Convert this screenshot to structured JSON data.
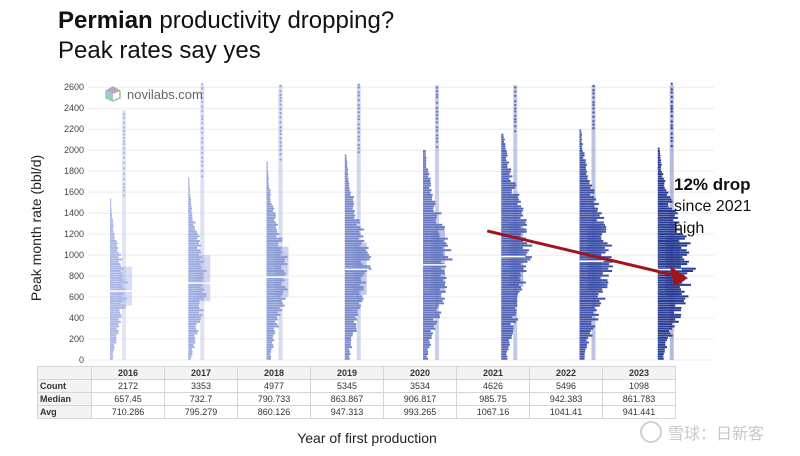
{
  "title": {
    "bold": "Permian",
    "rest": " productivity dropping?",
    "line2": "Peak rates say yes"
  },
  "logo": {
    "text": "novilabs.com"
  },
  "annotation": {
    "line1": "12% drop",
    "line2": "since 2021",
    "line3": "high"
  },
  "watermark": {
    "text": "雪球：日新客"
  },
  "colors": {
    "arrow": "#a0141e",
    "median_line": "#ffffff"
  },
  "chart_data": {
    "type": "violin_box",
    "xlabel": "Year of first production",
    "ylabel": "Peak month rate (bbl/d)",
    "ylim": [
      0,
      2650
    ],
    "yticks": [
      0,
      200,
      400,
      600,
      800,
      1000,
      1200,
      1400,
      1600,
      1800,
      2000,
      2200,
      2400,
      2600
    ],
    "grid": true,
    "categories": [
      "2016",
      "2017",
      "2018",
      "2019",
      "2020",
      "2021",
      "2022",
      "2023"
    ],
    "colors": [
      "#aab6e6",
      "#9eacdf",
      "#8c9cd6",
      "#7a8bcd",
      "#6878c4",
      "#5264b8",
      "#4153aa",
      "#2a3d95"
    ],
    "count": [
      2172,
      3353,
      4977,
      5345,
      3534,
      4626,
      5496,
      1098
    ],
    "median": [
      657.45,
      732.7,
      790.733,
      863.867,
      906.817,
      985.75,
      942.383,
      861.783
    ],
    "avg": [
      710.286,
      795.279,
      860.126,
      947.313,
      993.265,
      1067.16,
      1041.41,
      941.441
    ],
    "q1": [
      520,
      560,
      600,
      620,
      640,
      700,
      660,
      600
    ],
    "q3": [
      890,
      1000,
      1080,
      1120,
      1230,
      1310,
      1290,
      1180
    ],
    "max_histogram": [
      1540,
      1720,
      1880,
      1950,
      2000,
      2150,
      2180,
      2010
    ],
    "table": {
      "row_labels": [
        "Count",
        "Median",
        "Avg"
      ],
      "count": [
        "2172",
        "3353",
        "4977",
        "5345",
        "3534",
        "4626",
        "5496",
        "1098"
      ],
      "median": [
        "657.45",
        "732.7",
        "790.733",
        "863.867",
        "906.817",
        "985.75",
        "942.383",
        "861.783"
      ],
      "avg": [
        "710.286",
        "795.279",
        "860.126",
        "947.313",
        "993.265",
        "1067.16",
        "1041.41",
        "941.441"
      ]
    },
    "trend_arrow": {
      "from_year": "2021",
      "from_value": 1230,
      "to_value": 780
    }
  }
}
